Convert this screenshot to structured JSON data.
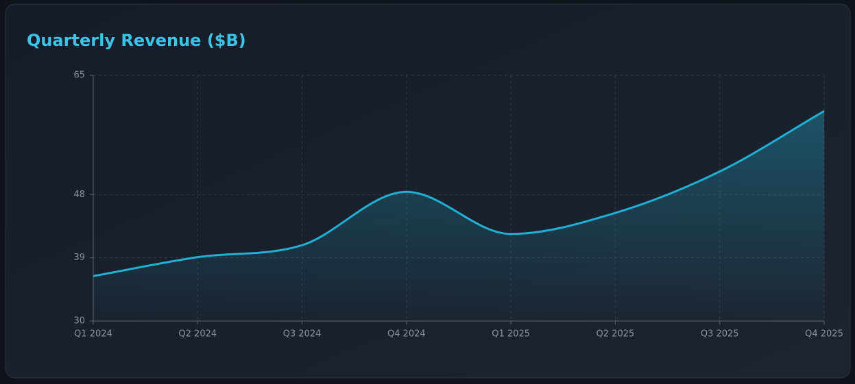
{
  "chart_data": {
    "type": "line",
    "title": "Quarterly Revenue ($B)",
    "categories": [
      "Q1 2024",
      "Q2 2024",
      "Q3 2024",
      "Q4 2024",
      "Q1 2025",
      "Q2 2025",
      "Q3 2025",
      "Q4 2025"
    ],
    "values": [
      36.4,
      39.1,
      40.8,
      48.4,
      42.4,
      45.4,
      51.3,
      59.9
    ],
    "color": "#1fb0d3",
    "ylim": [
      30,
      65
    ],
    "yticks": [
      30,
      39,
      48,
      65
    ],
    "grid": true
  }
}
